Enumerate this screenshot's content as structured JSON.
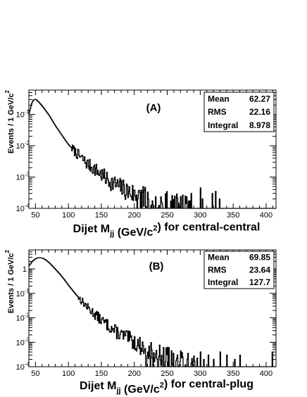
{
  "chart_data": [
    {
      "type": "histogram",
      "title": "(A)",
      "xlabel": "Dijet M_jj (GeV/c^2) for central-central",
      "ylabel": "Events / 1 GeV/c^2",
      "xlim": [
        40,
        415
      ],
      "ylim": [
        0.0001,
        0.6
      ],
      "y_scale": "log",
      "x_ticks": [
        50,
        100,
        150,
        200,
        250,
        300,
        350,
        400
      ],
      "y_ticks": [
        0.0001,
        0.001,
        0.01,
        0.1
      ],
      "y_tick_labels": [
        {
          "base": "10",
          "exp": "-4"
        },
        {
          "base": "10",
          "exp": "-3"
        },
        {
          "base": "10",
          "exp": "-2"
        },
        {
          "base": "10",
          "exp": "-1"
        }
      ],
      "legend_position": "top-right",
      "stats": [
        {
          "label": "Mean",
          "value": "62.27"
        },
        {
          "label": "RMS",
          "value": "22.16"
        },
        {
          "label": "Integral",
          "value": "8.978"
        }
      ],
      "curve": [
        [
          40,
          0.1
        ],
        [
          45,
          0.25
        ],
        [
          48,
          0.3
        ],
        [
          51,
          0.3
        ],
        [
          55,
          0.25
        ],
        [
          60,
          0.19
        ],
        [
          70,
          0.1
        ],
        [
          80,
          0.045
        ],
        [
          90,
          0.022
        ],
        [
          100,
          0.011
        ],
        [
          110,
          0.0065
        ],
        [
          120,
          0.004
        ],
        [
          130,
          0.0025
        ],
        [
          140,
          0.0018
        ],
        [
          150,
          0.0012
        ],
        [
          160,
          0.0008
        ],
        [
          170,
          0.0006
        ],
        [
          180,
          0.00045
        ],
        [
          190,
          0.00035
        ],
        [
          200,
          0.00028
        ],
        [
          210,
          0.00022
        ],
        [
          220,
          0.00018
        ],
        [
          230,
          0.00015
        ],
        [
          240,
          0.00013
        ],
        [
          250,
          0.00012
        ],
        [
          260,
          0.00011
        ],
        [
          270,
          0.0001
        ]
      ],
      "noise_start": 105,
      "noise_end": 285,
      "sparse_spikes": [
        [
          286,
          0.0003
        ],
        [
          300,
          0.00045
        ],
        [
          303,
          0.0002
        ],
        [
          318,
          0.0003
        ],
        [
          323,
          0.00035
        ],
        [
          329,
          0.0002
        ]
      ],
      "seed": 7
    },
    {
      "type": "histogram",
      "title": "(B)",
      "xlabel": "Dijet M_jj (GeV/c^2) for central-plug",
      "ylabel": "Events / 1 GeV/c^2",
      "xlim": [
        40,
        415
      ],
      "ylim": [
        0.0001,
        6
      ],
      "y_scale": "log",
      "x_ticks": [
        50,
        100,
        150,
        200,
        250,
        300,
        350,
        400
      ],
      "y_ticks": [
        0.0001,
        0.001,
        0.01,
        0.1,
        1
      ],
      "y_tick_labels": [
        {
          "base": "10",
          "exp": "-4"
        },
        {
          "base": "10",
          "exp": "-3"
        },
        {
          "base": "10",
          "exp": "-2"
        },
        {
          "base": "10",
          "exp": "-1"
        },
        {
          "base": "1",
          "exp": ""
        }
      ],
      "legend_position": "top-right",
      "stats": [
        {
          "label": "Mean",
          "value": "69.85"
        },
        {
          "label": "RMS",
          "value": "23.64"
        },
        {
          "label": "Integral",
          "value": "127.7"
        }
      ],
      "curve": [
        [
          40,
          1.3
        ],
        [
          45,
          2.0
        ],
        [
          50,
          2.6
        ],
        [
          55,
          2.9
        ],
        [
          60,
          2.8
        ],
        [
          65,
          2.4
        ],
        [
          70,
          1.9
        ],
        [
          80,
          1.0
        ],
        [
          90,
          0.5
        ],
        [
          100,
          0.22
        ],
        [
          110,
          0.1
        ],
        [
          120,
          0.05
        ],
        [
          130,
          0.025
        ],
        [
          140,
          0.014
        ],
        [
          150,
          0.008
        ],
        [
          160,
          0.005
        ],
        [
          170,
          0.003
        ],
        [
          180,
          0.002
        ],
        [
          190,
          0.0015
        ],
        [
          200,
          0.001
        ],
        [
          210,
          0.0007
        ],
        [
          220,
          0.0005
        ],
        [
          230,
          0.0004
        ],
        [
          240,
          0.0003
        ],
        [
          250,
          0.00025
        ],
        [
          260,
          0.0002
        ],
        [
          270,
          0.00015
        ],
        [
          280,
          0.00012
        ],
        [
          290,
          0.0001
        ]
      ],
      "noise_start": 115,
      "noise_end": 298,
      "sparse_spikes": [
        [
          300,
          0.0004
        ],
        [
          305,
          0.0002
        ],
        [
          312,
          0.0003
        ],
        [
          320,
          0.0002
        ],
        [
          330,
          0.0004
        ],
        [
          340,
          0.0003
        ],
        [
          352,
          0.0002
        ],
        [
          360,
          0.0003
        ],
        [
          409,
          0.0004
        ]
      ],
      "seed": 13
    }
  ]
}
